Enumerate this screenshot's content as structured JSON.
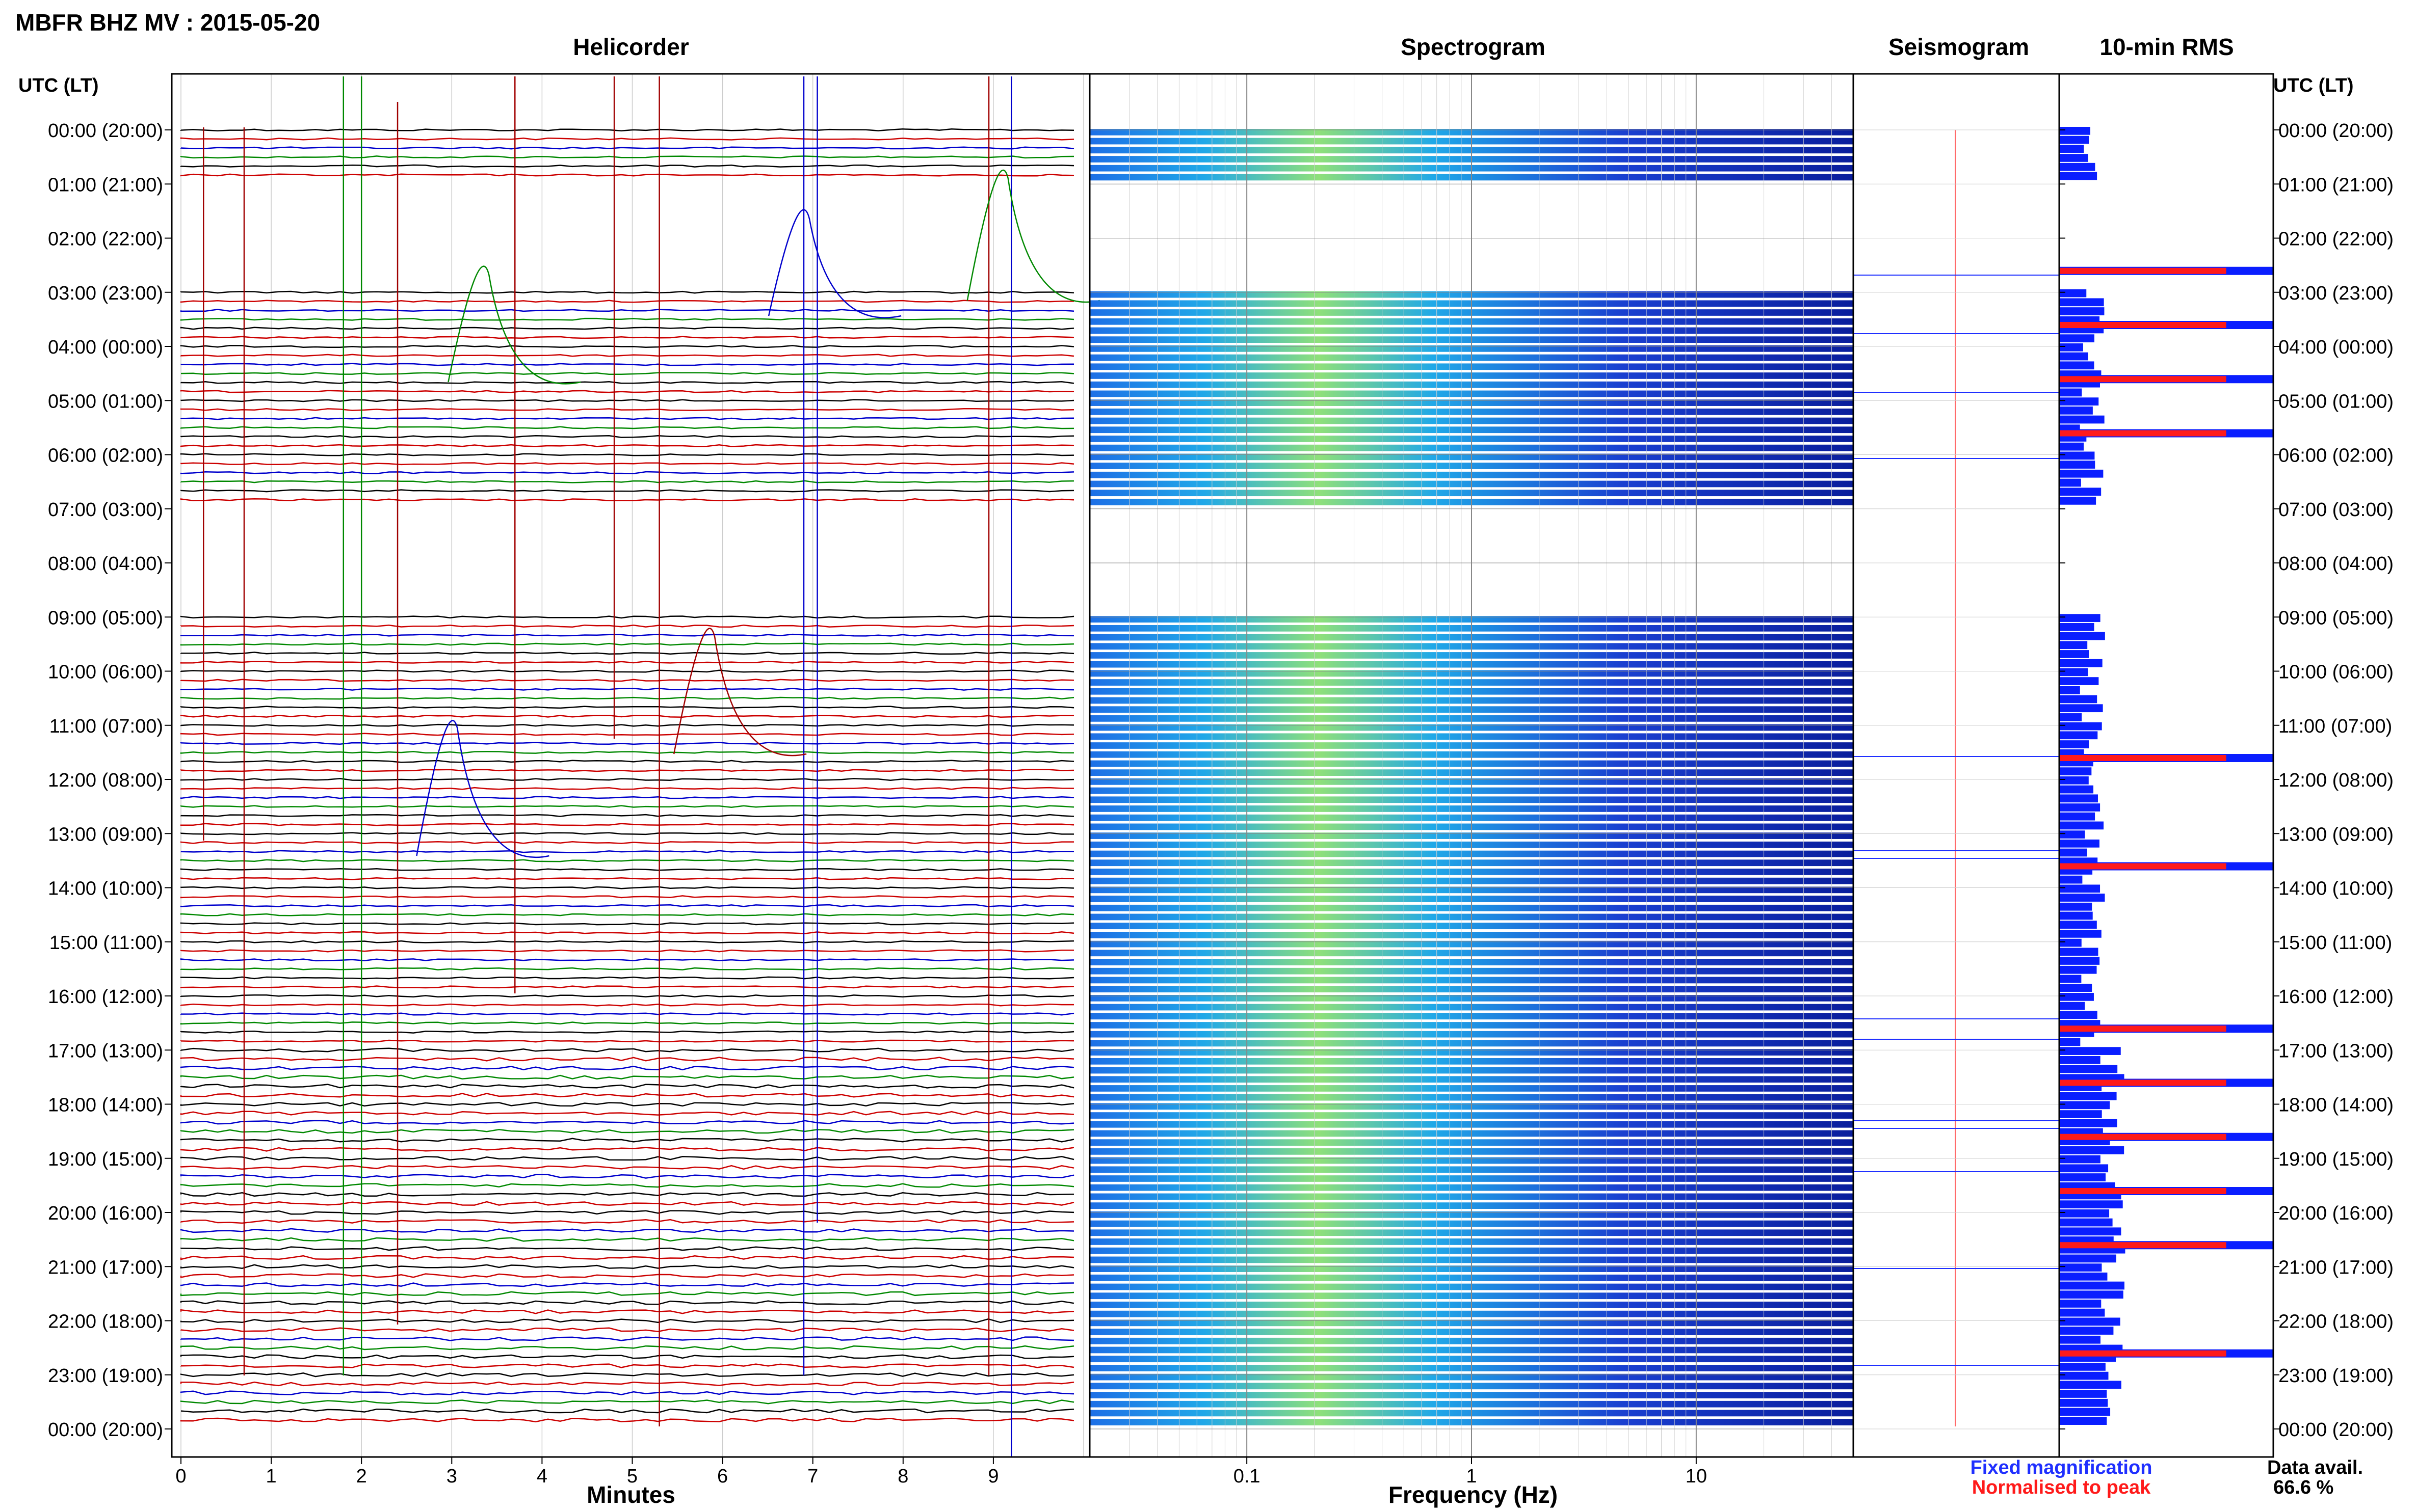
{
  "title": "MBFR BHZ MV : 2015-05-20",
  "panels": {
    "helicorder": "Helicorder",
    "spectrogram": "Spectrogram",
    "seismogram": "Seismogram",
    "rms": "10-min RMS"
  },
  "axis_header_left": "UTC (LT)",
  "axis_header_right": "UTC (LT)",
  "row_labels": [
    "00:00 (20:00)",
    "01:00 (21:00)",
    "02:00 (22:00)",
    "03:00 (23:00)",
    "04:00 (00:00)",
    "05:00 (01:00)",
    "06:00 (02:00)",
    "07:00 (03:00)",
    "08:00 (04:00)",
    "09:00 (05:00)",
    "10:00 (06:00)",
    "11:00 (07:00)",
    "12:00 (08:00)",
    "13:00 (09:00)",
    "14:00 (10:00)",
    "15:00 (11:00)",
    "16:00 (12:00)",
    "17:00 (13:00)",
    "18:00 (14:00)",
    "19:00 (15:00)",
    "20:00 (16:00)",
    "21:00 (17:00)",
    "22:00 (18:00)",
    "23:00 (19:00)",
    "00:00 (20:00)"
  ],
  "helicorder_xlabel": "Minutes",
  "spectrogram_xlabel": "Frequency (Hz)",
  "legend": {
    "fixed": "Fixed magnification",
    "normalised": "Normalised to peak",
    "fixed_color": "#1f2fff",
    "normalised_color": "#ff1a1a"
  },
  "data_avail_label": "Data avail.",
  "data_avail_value": "66.6 %",
  "chart_data": [
    {
      "type": "line",
      "panel": "helicorder",
      "xlabel": "Minutes",
      "xlim": [
        0,
        10
      ],
      "x_ticks": [
        "0",
        "1",
        "2",
        "3",
        "4",
        "5",
        "6",
        "7",
        "8",
        "9"
      ],
      "trace_colors": [
        "#000000",
        "#cc0000",
        "#0000cc",
        "#008800"
      ],
      "data_hours_present": [
        0,
        3,
        4,
        5,
        6,
        9,
        10,
        11,
        12,
        13,
        14,
        15,
        16,
        17,
        18,
        19,
        20,
        21,
        22,
        23
      ]
    },
    {
      "type": "heatmap",
      "panel": "spectrogram",
      "xlabel": "Frequency (Hz)",
      "x_scale": "log",
      "xlim": [
        0.02,
        50
      ],
      "x_ticks": [
        "0.1",
        "1",
        "10"
      ],
      "active_rows": [
        0,
        3,
        4,
        5,
        6,
        9,
        10,
        11,
        12,
        13,
        14,
        15,
        16,
        17,
        18,
        19,
        20,
        21,
        22,
        23
      ]
    },
    {
      "type": "bar",
      "panel": "10-min RMS",
      "orientation": "horizontal",
      "series": [
        {
          "name": "Fixed magnification"
        },
        {
          "name": "Normalised to peak"
        }
      ],
      "red_peaks_hours": [
        3,
        4,
        5,
        6,
        12,
        14,
        17,
        18,
        19,
        20,
        21,
        23
      ]
    }
  ]
}
